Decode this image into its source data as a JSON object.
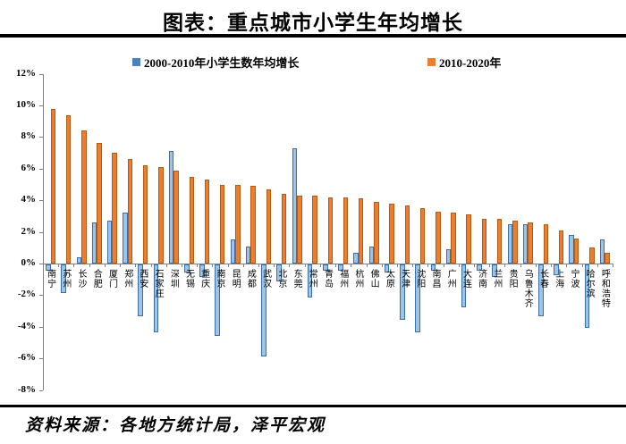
{
  "header": {
    "title": "图表：重点城市小学生年均增长"
  },
  "footer": {
    "source": "资料来源：各地方统计局，泽平宏观"
  },
  "colors": {
    "series_blue": "#4f81bd",
    "series_orange": "#ed7d31",
    "axis": "#808080",
    "rule": "#000000"
  },
  "chart_data": {
    "type": "bar",
    "title": "图表：重点城市小学生年均增长",
    "xlabel": "",
    "ylabel": "",
    "unit": "%",
    "ylim": [
      -8,
      12
    ],
    "ytick_step": 2,
    "yticks": [
      "12%",
      "10%",
      "8%",
      "6%",
      "4%",
      "2%",
      "0%",
      "-2%",
      "-4%",
      "-6%",
      "-8%"
    ],
    "grid": false,
    "legend_position": "top",
    "categories": [
      "南宁",
      "苏州",
      "长沙",
      "合肥",
      "厦门",
      "郑州",
      "西安",
      "石家庄",
      "深圳",
      "无锡",
      "重庆",
      "南京",
      "昆明",
      "成都",
      "武汉",
      "北京",
      "东莞",
      "常州",
      "青岛",
      "福州",
      "杭州",
      "佛山",
      "太原",
      "天津",
      "沈阳",
      "南昌",
      "广州",
      "大连",
      "济南",
      "兰州",
      "贵阳",
      "乌鲁木齐",
      "长春",
      "上海",
      "宁波",
      "哈尔滨",
      "呼和浩特"
    ],
    "series": [
      {
        "name": "2000-2010年小学生数年均增长",
        "color": "#4f81bd",
        "values": [
          -0.4,
          -1.8,
          0.4,
          2.6,
          2.7,
          3.2,
          -3.3,
          -4.3,
          7.1,
          -0.5,
          -0.8,
          -4.5,
          1.5,
          1.1,
          -5.8,
          -1.1,
          7.3,
          -2.1,
          -0.4,
          -0.4,
          0.7,
          1.1,
          -0.5,
          -3.5,
          -4.3,
          -0.4,
          0.9,
          -2.7,
          -0.4,
          -0.8,
          2.5,
          2.5,
          -3.3,
          -0.7,
          1.8,
          -4.0,
          1.5
        ]
      },
      {
        "name": "2010-2020年",
        "color": "#ed7d31",
        "values": [
          9.8,
          9.4,
          8.4,
          7.6,
          7.0,
          6.6,
          6.2,
          6.1,
          5.9,
          5.5,
          5.3,
          5.0,
          5.0,
          4.9,
          4.7,
          4.4,
          4.3,
          4.3,
          4.2,
          4.2,
          4.1,
          3.9,
          3.8,
          3.7,
          3.5,
          3.3,
          3.2,
          3.1,
          2.8,
          2.8,
          2.7,
          2.6,
          2.5,
          2.1,
          1.6,
          1.0,
          0.7
        ]
      }
    ]
  }
}
